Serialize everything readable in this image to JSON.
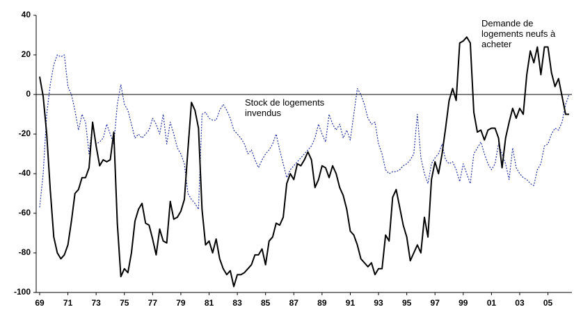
{
  "chart_data": {
    "type": "line",
    "categories": [
      "69",
      null,
      null,
      null,
      null,
      null,
      null,
      null,
      "71",
      null,
      null,
      null,
      null,
      null,
      null,
      null,
      "73",
      null,
      null,
      null,
      null,
      null,
      null,
      null,
      "75",
      null,
      null,
      null,
      null,
      null,
      null,
      null,
      "77",
      null,
      null,
      null,
      null,
      null,
      null,
      null,
      "79",
      null,
      null,
      null,
      null,
      null,
      null,
      null,
      "81",
      null,
      null,
      null,
      null,
      null,
      null,
      null,
      "83",
      null,
      null,
      null,
      null,
      null,
      null,
      null,
      "85",
      null,
      null,
      null,
      null,
      null,
      null,
      null,
      "87",
      null,
      null,
      null,
      null,
      null,
      null,
      null,
      "89",
      null,
      null,
      null,
      null,
      null,
      null,
      null,
      "91",
      null,
      null,
      null,
      null,
      null,
      null,
      null,
      "93",
      null,
      null,
      null,
      null,
      null,
      null,
      null,
      "95",
      null,
      null,
      null,
      null,
      null,
      null,
      null,
      "97",
      null,
      null,
      null,
      null,
      null,
      null,
      null,
      "99",
      null,
      null,
      null,
      null,
      null,
      null,
      null,
      "01",
      null,
      null,
      null,
      null,
      null,
      null,
      null,
      "03",
      null,
      null,
      null,
      null,
      null,
      null,
      null,
      "05",
      null,
      null,
      null,
      null,
      null,
      null
    ],
    "series": [
      {
        "name": "Demande de logements neufs à acheter",
        "color": "#000000",
        "dash": false,
        "values": [
          9,
          -1,
          -20,
          -48,
          -72,
          -80,
          -83,
          -81,
          -76,
          -64,
          -50,
          -48,
          -42,
          -42,
          -37,
          -14,
          -26,
          -36,
          -33,
          -34,
          -33,
          -19,
          -65,
          -92,
          -88,
          -90,
          -80,
          -64,
          -58,
          -55,
          -65,
          -66,
          -73,
          -81,
          -68,
          -74,
          -75,
          -54,
          -63,
          -62,
          -59,
          -53,
          -28,
          -4,
          -8,
          -17,
          -58,
          -76,
          -74,
          -80,
          -73,
          -83,
          -88,
          -91,
          -89,
          -97,
          -91,
          -91,
          -90,
          -88,
          -86,
          -81,
          -81,
          -78,
          -86,
          -74,
          -72,
          -65,
          -66,
          -62,
          -45,
          -40,
          -43,
          -35,
          -36,
          -33,
          -29,
          -33,
          -47,
          -43,
          -36,
          -37,
          -42,
          -36,
          -40,
          -47,
          -51,
          -58,
          -69,
          -71,
          -76,
          -83,
          -85,
          -87,
          -85,
          -91,
          -88,
          -88,
          -71,
          -74,
          -52,
          -48,
          -57,
          -66,
          -72,
          -84,
          -80,
          -76,
          -80,
          -62,
          -72,
          -43,
          -34,
          -40,
          -30,
          -17,
          -3,
          3,
          -3,
          26,
          27,
          29,
          26,
          -9,
          -19,
          -18,
          -23,
          -18,
          -17,
          -17,
          -22,
          -37,
          -22,
          -14,
          -7,
          -12,
          -7,
          -10,
          10,
          22,
          16,
          24,
          10,
          24,
          24,
          11,
          4,
          8,
          -1,
          -10,
          -10
        ]
      },
      {
        "name": "Stock de logements invendus",
        "color": "#1f2f9f",
        "dash": true,
        "values": [
          -57,
          -40,
          -10,
          5,
          15,
          20,
          19,
          20,
          4,
          0,
          -8,
          -18,
          -10,
          -14,
          -30,
          -15,
          -25,
          -24,
          -22,
          -15,
          -20,
          -25,
          -5,
          5,
          -5,
          -8,
          -15,
          -22,
          -20,
          -22,
          -20,
          -18,
          -12,
          -15,
          -20,
          -10,
          -25,
          -14,
          -20,
          -27,
          -30,
          -35,
          -50,
          -53,
          -55,
          -58,
          -10,
          -9,
          -12,
          -13,
          -13,
          -8,
          -5,
          -8,
          -12,
          -18,
          -20,
          -22,
          -25,
          -30,
          -28,
          -33,
          -37,
          -33,
          -30,
          -28,
          -25,
          -20,
          -28,
          -35,
          -42,
          -38,
          -36,
          -34,
          -32,
          -30,
          -28,
          -26,
          -22,
          -15,
          -20,
          -24,
          -10,
          -15,
          -18,
          -15,
          -22,
          -18,
          -23,
          -10,
          3,
          0,
          -5,
          -12,
          -15,
          -14,
          -25,
          -30,
          -38,
          -40,
          -39,
          -39,
          -38,
          -36,
          -35,
          -33,
          -30,
          -10,
          -32,
          -40,
          -45,
          -35,
          -32,
          -30,
          -25,
          -33,
          -35,
          -34,
          -38,
          -44,
          -35,
          -40,
          -45,
          -30,
          -27,
          -24,
          -30,
          -35,
          -38,
          -35,
          -25,
          -30,
          -35,
          -43,
          -27,
          -37,
          -40,
          -42,
          -43,
          -45,
          -46,
          -38,
          -35,
          -26,
          -25,
          -20,
          -17,
          -18,
          -14,
          -5,
          0
        ]
      }
    ],
    "ylim": [
      -100,
      40
    ],
    "yticks": [
      -100,
      -80,
      -60,
      -40,
      -20,
      0,
      20,
      40
    ],
    "grid": false
  }
}
